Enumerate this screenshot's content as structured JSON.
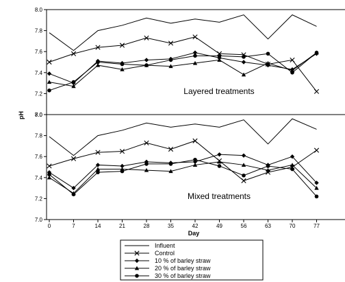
{
  "chart_data": {
    "type": "line",
    "ylabel": "pH",
    "xlabel": "Day",
    "x": [
      0,
      7,
      14,
      21,
      28,
      35,
      42,
      49,
      56,
      63,
      70,
      77
    ],
    "xtick_labels": [
      "0",
      "7",
      "14",
      "21",
      "28",
      "35",
      "42",
      "49",
      "56",
      "63",
      "70",
      "77"
    ],
    "ylim": [
      7.0,
      8.0
    ],
    "yticks": [
      7.0,
      7.2,
      7.4,
      7.6,
      7.8,
      8.0
    ],
    "ytick_labels": [
      "7.0",
      "7.2",
      "7.4",
      "7.6",
      "7.8",
      "8.0"
    ],
    "series_styles": [
      {
        "name": "Influent",
        "marker": "none",
        "color": "#000000"
      },
      {
        "name": "Control",
        "marker": "x",
        "color": "#000000"
      },
      {
        "name": "10 % of barley straw",
        "marker": "diamond",
        "color": "#000000"
      },
      {
        "name": "20 % of barley straw",
        "marker": "triangle",
        "color": "#000000"
      },
      {
        "name": "30 % of barley straw",
        "marker": "circle",
        "color": "#000000"
      }
    ],
    "panels": [
      {
        "label": "Layered treatments",
        "series": [
          {
            "name": "Influent",
            "values": [
              7.78,
              7.61,
              7.8,
              7.85,
              7.92,
              7.87,
              7.91,
              7.88,
              7.95,
              7.72,
              7.95,
              7.84
            ]
          },
          {
            "name": "Control",
            "values": [
              7.5,
              7.58,
              7.64,
              7.66,
              7.73,
              7.68,
              7.74,
              7.58,
              7.57,
              7.48,
              7.52,
              7.22
            ]
          },
          {
            "name": "10 % of barley straw",
            "values": [
              7.39,
              7.3,
              7.51,
              7.49,
              7.52,
              7.53,
              7.59,
              7.54,
              7.5,
              7.47,
              7.43,
              7.58
            ]
          },
          {
            "name": "20 % of barley straw",
            "values": [
              7.31,
              7.27,
              7.47,
              7.43,
              7.47,
              7.46,
              7.49,
              7.52,
              7.38,
              7.49,
              7.42,
              7.59
            ]
          },
          {
            "name": "30 % of barley straw",
            "values": [
              7.23,
              7.31,
              7.5,
              7.48,
              7.47,
              7.52,
              7.56,
              7.56,
              7.55,
              7.58,
              7.4,
              7.59
            ]
          }
        ]
      },
      {
        "label": "Mixed treatments",
        "series": [
          {
            "name": "Influent",
            "values": [
              7.79,
              7.61,
              7.8,
              7.85,
              7.92,
              7.88,
              7.91,
              7.88,
              7.95,
              7.72,
              7.96,
              7.86
            ]
          },
          {
            "name": "Control",
            "values": [
              7.51,
              7.58,
              7.64,
              7.65,
              7.73,
              7.67,
              7.75,
              7.56,
              7.37,
              7.45,
              7.5,
              7.66
            ]
          },
          {
            "name": "10 % of barley straw",
            "values": [
              7.45,
              7.3,
              7.52,
              7.51,
              7.55,
              7.54,
              7.55,
              7.62,
              7.61,
              7.52,
              7.6,
              7.35
            ]
          },
          {
            "name": "20 % of barley straw",
            "values": [
              7.4,
              7.25,
              7.48,
              7.48,
              7.47,
              7.46,
              7.52,
              7.55,
              7.52,
              7.47,
              7.52,
              7.3
            ]
          },
          {
            "name": "30 % of barley straw",
            "values": [
              7.43,
              7.24,
              7.45,
              7.46,
              7.53,
              7.53,
              7.57,
              7.51,
              7.42,
              7.51,
              7.48,
              7.22
            ]
          }
        ]
      }
    ],
    "legend": {
      "position": "bottom-center",
      "entries": [
        "Influent",
        "Control",
        "10 % of barley straw",
        "20 % of barley straw",
        "30 % of barley straw"
      ]
    },
    "grid": false
  }
}
